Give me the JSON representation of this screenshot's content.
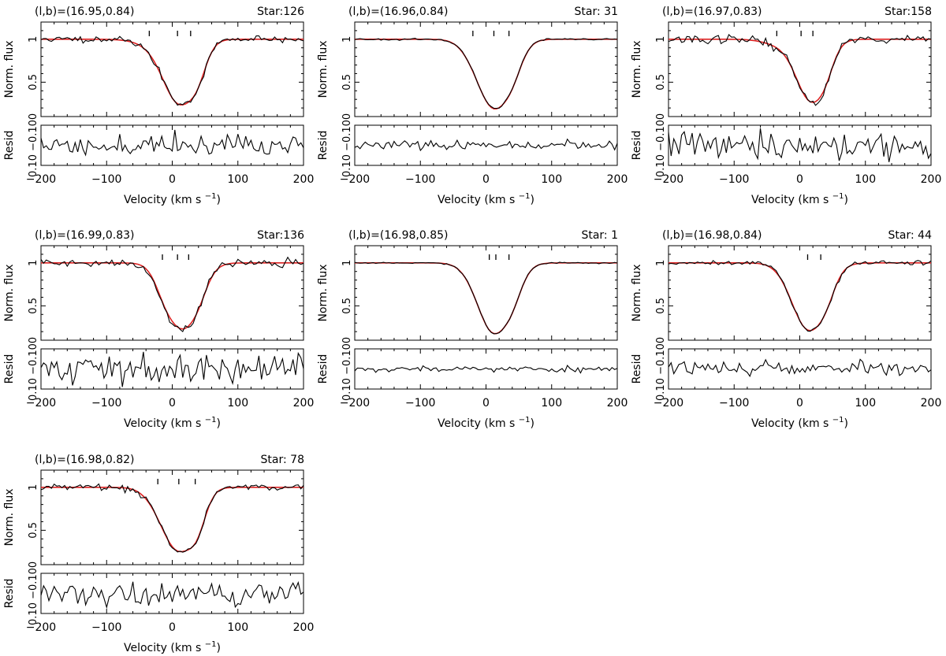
{
  "chart_data": {
    "type": "line",
    "colors": {
      "observed": "#000000",
      "model": "#dd2222"
    },
    "panels": [
      {
        "title": "(l,b)=(16.95,0.84)",
        "star": "Star:126",
        "flux_ylabel": "Norm. flux",
        "resid_ylabel": "Resid",
        "xlabel": "Velocity (km s",
        "xlabel_sup": "−1",
        "xlabel_close": ")",
        "xlim": [
          -200,
          200
        ],
        "flux_ylim": [
          0.1,
          1.2
        ],
        "resid_ylim": [
          -0.1,
          0.1
        ],
        "x_ticks": [
          "−200",
          "−100",
          "0",
          "100",
          "200"
        ],
        "flux_ticks": [
          "1",
          "0.5",
          "0"
        ],
        "resid_ticks": [
          "0.10",
          "−0.10"
        ],
        "components": [
          -35,
          8,
          28
        ],
        "dips": [
          {
            "center": 10,
            "depth": 0.72,
            "width": 24
          },
          {
            "center": 33,
            "depth": 0.38,
            "width": 15
          },
          {
            "center": -25,
            "depth": 0.06,
            "width": 28
          }
        ],
        "noise": 0.018,
        "resid_noise": 0.028,
        "seed": 11
      },
      {
        "title": "(l,b)=(16.96,0.84)",
        "star": "Star: 31",
        "flux_ylabel": "Norm. flux",
        "resid_ylabel": "Resid",
        "xlabel": "Velocity (km s",
        "xlabel_sup": "−1",
        "xlabel_close": ")",
        "xlim": [
          -200,
          200
        ],
        "flux_ylim": [
          0.1,
          1.2
        ],
        "resid_ylim": [
          -0.1,
          0.1
        ],
        "x_ticks": [
          "−200",
          "−100",
          "0",
          "100",
          "200"
        ],
        "flux_ticks": [
          "1",
          "0.5",
          "0"
        ],
        "resid_ticks": [
          "0.10",
          "−0.10"
        ],
        "components": [
          -20,
          12,
          35
        ],
        "dips": [
          {
            "center": 12,
            "depth": 0.78,
            "width": 25
          },
          {
            "center": 34,
            "depth": 0.3,
            "width": 16
          },
          {
            "center": -15,
            "depth": 0.05,
            "width": 22
          }
        ],
        "noise": 0.005,
        "resid_noise": 0.01,
        "seed": 23
      },
      {
        "title": "(l,b)=(16.97,0.83)",
        "star": "Star:158",
        "flux_ylabel": "Norm. flux",
        "resid_ylabel": "Resid",
        "xlabel": "Velocity (km s",
        "xlabel_sup": "−1",
        "xlabel_close": ")",
        "xlim": [
          -200,
          200
        ],
        "flux_ylim": [
          0.1,
          1.2
        ],
        "resid_ylim": [
          -0.1,
          0.1
        ],
        "x_ticks": [
          "−200",
          "−100",
          "0",
          "100",
          "200"
        ],
        "flux_ticks": [
          "1",
          "0.5",
          "0"
        ],
        "resid_ticks": [
          "0.10",
          "−0.10"
        ],
        "components": [
          -35,
          2,
          20
        ],
        "dips": [
          {
            "center": 16,
            "depth": 0.68,
            "width": 22
          },
          {
            "center": 33,
            "depth": 0.3,
            "width": 14
          },
          {
            "center": -30,
            "depth": 0.06,
            "width": 24
          }
        ],
        "noise": 0.025,
        "resid_noise": 0.035,
        "seed": 37
      },
      {
        "title": "(l,b)=(16.99,0.83)",
        "star": "Star:136",
        "flux_ylabel": "Norm. flux",
        "resid_ylabel": "Resid",
        "xlabel": "Velocity (km s",
        "xlabel_sup": "−1",
        "xlabel_close": ")",
        "xlim": [
          -200,
          200
        ],
        "flux_ylim": [
          0.1,
          1.2
        ],
        "resid_ylim": [
          -0.1,
          0.1
        ],
        "x_ticks": [
          "−200",
          "−100",
          "0",
          "100",
          "200"
        ],
        "flux_ticks": [
          "1",
          "0.5",
          "0"
        ],
        "resid_ticks": [
          "0.10",
          "−0.10"
        ],
        "components": [
          -15,
          8,
          25
        ],
        "dips": [
          {
            "center": 16,
            "depth": 0.72,
            "width": 24
          },
          {
            "center": -5,
            "depth": 0.25,
            "width": 16
          },
          {
            "center": 35,
            "depth": 0.2,
            "width": 14
          }
        ],
        "noise": 0.025,
        "resid_noise": 0.035,
        "seed": 41
      },
      {
        "title": "(l,b)=(16.98,0.85)",
        "star": "Star:  1",
        "flux_ylabel": "Norm. flux",
        "resid_ylabel": "Resid",
        "xlabel": "Velocity (km s",
        "xlabel_sup": "−1",
        "xlabel_close": ")",
        "xlim": [
          -200,
          200
        ],
        "flux_ylim": [
          0.1,
          1.2
        ],
        "resid_ylim": [
          -0.1,
          0.1
        ],
        "x_ticks": [
          "−200",
          "−100",
          "0",
          "100",
          "200"
        ],
        "flux_ticks": [
          "1",
          "0.5",
          "0"
        ],
        "resid_ticks": [
          "0.10",
          "−0.10"
        ],
        "components": [
          5,
          15,
          35
        ],
        "dips": [
          {
            "center": 12,
            "depth": 0.8,
            "width": 25
          },
          {
            "center": 34,
            "depth": 0.3,
            "width": 16
          }
        ],
        "noise": 0.004,
        "resid_noise": 0.007,
        "seed": 53
      },
      {
        "title": "(l,b)=(16.98,0.84)",
        "star": "Star: 44",
        "flux_ylabel": "Norm. flux",
        "resid_ylabel": "Resid",
        "xlabel": "Velocity (km s",
        "xlabel_sup": "−1",
        "xlabel_close": ")",
        "xlim": [
          -200,
          200
        ],
        "flux_ylim": [
          0.1,
          1.2
        ],
        "resid_ylim": [
          -0.1,
          0.1
        ],
        "x_ticks": [
          "−200",
          "−100",
          "0",
          "100",
          "200"
        ],
        "flux_ticks": [
          "1",
          "0.5",
          "0"
        ],
        "resid_ticks": [
          "0.10",
          "−0.10"
        ],
        "components": [
          12,
          32
        ],
        "dips": [
          {
            "center": 13,
            "depth": 0.76,
            "width": 25
          },
          {
            "center": 34,
            "depth": 0.28,
            "width": 15
          }
        ],
        "noise": 0.012,
        "resid_noise": 0.018,
        "seed": 67
      },
      {
        "title": "(l,b)=(16.98,0.82)",
        "star": "Star: 78",
        "flux_ylabel": "Norm. flux",
        "resid_ylabel": "Resid",
        "xlabel": "Velocity (km s",
        "xlabel_sup": "−1",
        "xlabel_close": ")",
        "xlim": [
          -200,
          200
        ],
        "flux_ylim": [
          0.1,
          1.2
        ],
        "resid_ylim": [
          -0.1,
          0.1
        ],
        "x_ticks": [
          "−200",
          "−100",
          "0",
          "100",
          "200"
        ],
        "flux_ticks": [
          "1",
          "0.5",
          "0"
        ],
        "resid_ticks": [
          "0.10",
          "−0.10"
        ],
        "components": [
          -22,
          10,
          35
        ],
        "dips": [
          {
            "center": 8,
            "depth": 0.7,
            "width": 24
          },
          {
            "center": 33,
            "depth": 0.45,
            "width": 15
          },
          {
            "center": -20,
            "depth": 0.07,
            "width": 22
          }
        ],
        "noise": 0.018,
        "resid_noise": 0.028,
        "seed": 79
      }
    ]
  }
}
